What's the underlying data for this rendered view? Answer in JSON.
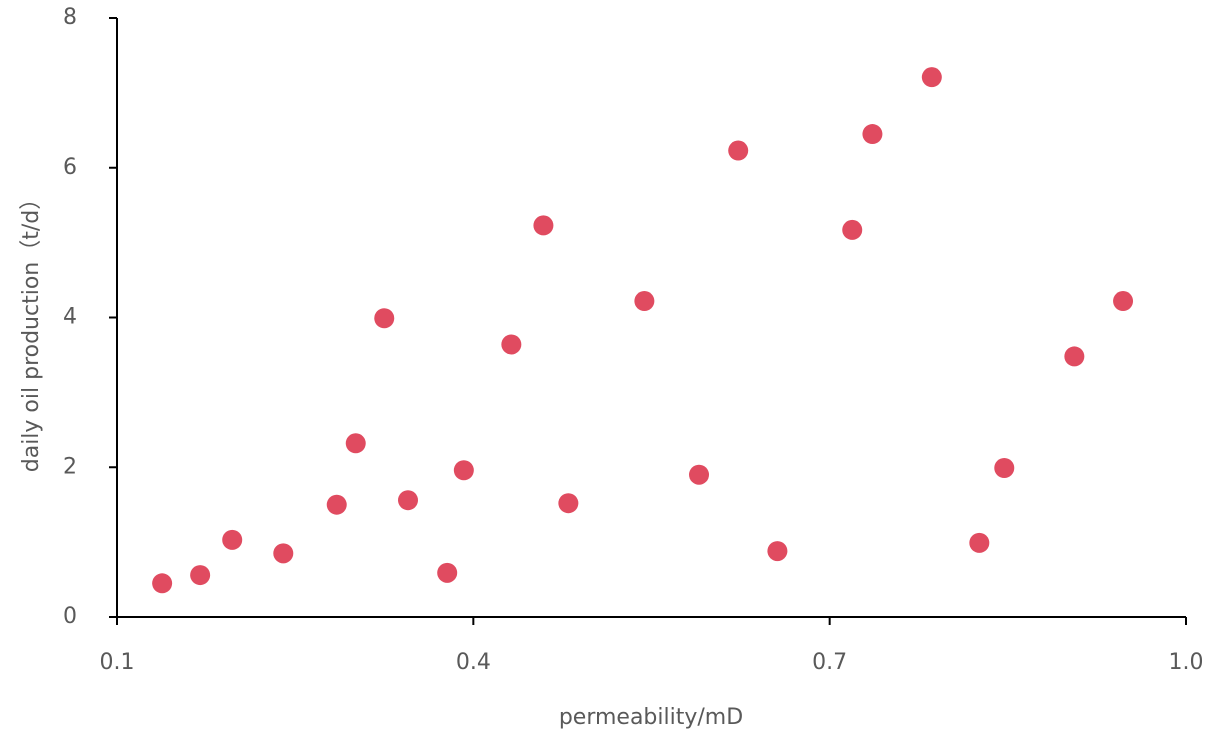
{
  "chart_data": {
    "type": "scatter",
    "x_label": "permeability/mD",
    "y_label": "daily oil production（t/d）",
    "color": "#e04b60",
    "xlim": [
      0.1,
      1.0
    ],
    "xticks": [
      0.1,
      0.4,
      0.7,
      {
        "value": 1,
        "label": "1.0"
      }
    ],
    "ylim": [
      0,
      8
    ],
    "yticks": [
      0,
      2,
      4,
      6,
      8
    ],
    "x": [
      0.138,
      0.17,
      0.197,
      0.24,
      0.285,
      0.301,
      0.325,
      0.345,
      0.378,
      0.392,
      0.432,
      0.459,
      0.48,
      0.544,
      0.59,
      0.623,
      0.656,
      0.719,
      0.736,
      0.786,
      0.826,
      0.847,
      0.906,
      0.947
    ],
    "values": [
      0.45,
      0.56,
      1.03,
      0.85,
      1.5,
      2.32,
      3.99,
      1.56,
      0.59,
      1.96,
      3.64,
      5.23,
      1.52,
      4.22,
      1.9,
      6.23,
      0.88,
      5.17,
      6.45,
      7.21,
      0.99,
      1.99,
      3.48,
      4.22
    ]
  }
}
